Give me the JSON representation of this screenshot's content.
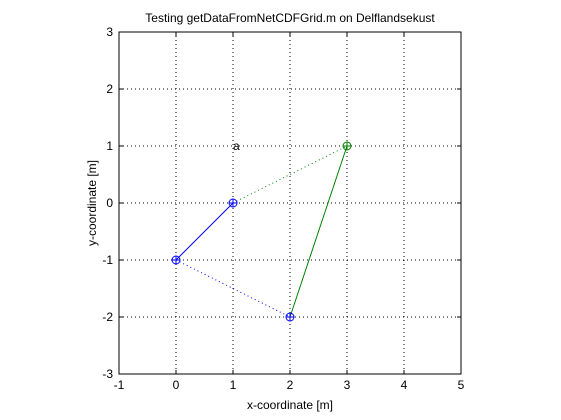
{
  "chart_data": {
    "type": "line",
    "title": "Testing getDataFromNetCDFGrid.m on Delflandsekust",
    "xlabel": "x-coordinate [m]",
    "ylabel": "y-coordinate [m]",
    "xlim": [
      -1,
      5
    ],
    "ylim": [
      -3,
      3
    ],
    "xticks": [
      -1,
      0,
      1,
      2,
      3,
      4,
      5
    ],
    "yticks": [
      -3,
      -2,
      -1,
      0,
      1,
      2,
      3
    ],
    "grid": true,
    "series": [
      {
        "color": "#0000ff",
        "style": "solid",
        "marker": "none",
        "x": [
          0,
          1
        ],
        "y": [
          -1,
          0
        ]
      },
      {
        "color": "#0000ff",
        "style": "dotted",
        "marker": "none",
        "x": [
          0,
          2
        ],
        "y": [
          -1,
          -2
        ]
      },
      {
        "color": "#008000",
        "style": "dotted",
        "marker": "none",
        "x": [
          1,
          3
        ],
        "y": [
          0,
          1
        ]
      },
      {
        "color": "#008000",
        "style": "solid",
        "marker": "none",
        "x": [
          2,
          3
        ],
        "y": [
          -2,
          1
        ]
      },
      {
        "color": "#0000ff",
        "style": "none",
        "marker": "circle-plus",
        "x": [
          0,
          1,
          2
        ],
        "y": [
          -1,
          0,
          -2
        ]
      },
      {
        "color": "#008000",
        "style": "none",
        "marker": "circle-plus",
        "x": [
          3
        ],
        "y": [
          1
        ]
      }
    ],
    "annotations": [
      {
        "text": "a",
        "x": 1.0,
        "y": 1.0
      }
    ]
  }
}
